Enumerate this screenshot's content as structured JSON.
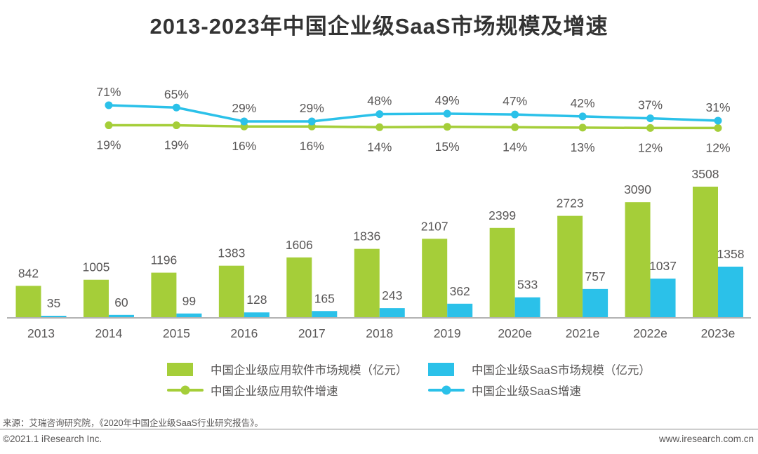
{
  "title": "2013-2023年中国企业级SaaS市场规模及增速",
  "chart_data": {
    "type": "combo",
    "categories": [
      "2013",
      "2014",
      "2015",
      "2016",
      "2017",
      "2018",
      "2019",
      "2020e",
      "2021e",
      "2022e",
      "2023e"
    ],
    "series": [
      {
        "name": "中国企业级应用软件市场规模（亿元）",
        "chart": "bar",
        "color": "#a5ce39",
        "values": [
          842,
          1005,
          1196,
          1383,
          1606,
          1836,
          2107,
          2399,
          2723,
          3090,
          3508
        ]
      },
      {
        "name": "中国企业级SaaS市场规模（亿元）",
        "chart": "bar",
        "color": "#2bc1e9",
        "values": [
          35,
          60,
          99,
          128,
          165,
          243,
          362,
          533,
          757,
          1037,
          1358
        ]
      },
      {
        "name": "中国企业级应用软件增速",
        "chart": "line",
        "color": "#a5ce39",
        "unit": "%",
        "values": [
          null,
          19,
          19,
          16,
          16,
          14,
          15,
          14,
          13,
          12,
          12
        ]
      },
      {
        "name": "中国企业级SaaS增速",
        "chart": "line",
        "color": "#2bc1e9",
        "unit": "%",
        "values": [
          null,
          71,
          65,
          29,
          29,
          48,
          49,
          47,
          42,
          37,
          31
        ]
      }
    ],
    "value_labels": true,
    "gridlines": false,
    "y_axis_shown": false,
    "legend_position": "bottom",
    "label_color": "#595757",
    "axis_line_color": "#b3b3b3"
  },
  "footer": {
    "source": "来源：艾瑞咨询研究院，《2020年中国企业级SaaS行业研究报告》。",
    "copyright": "©2021.1 iResearch Inc.",
    "website": "www.iresearch.com.cn"
  }
}
